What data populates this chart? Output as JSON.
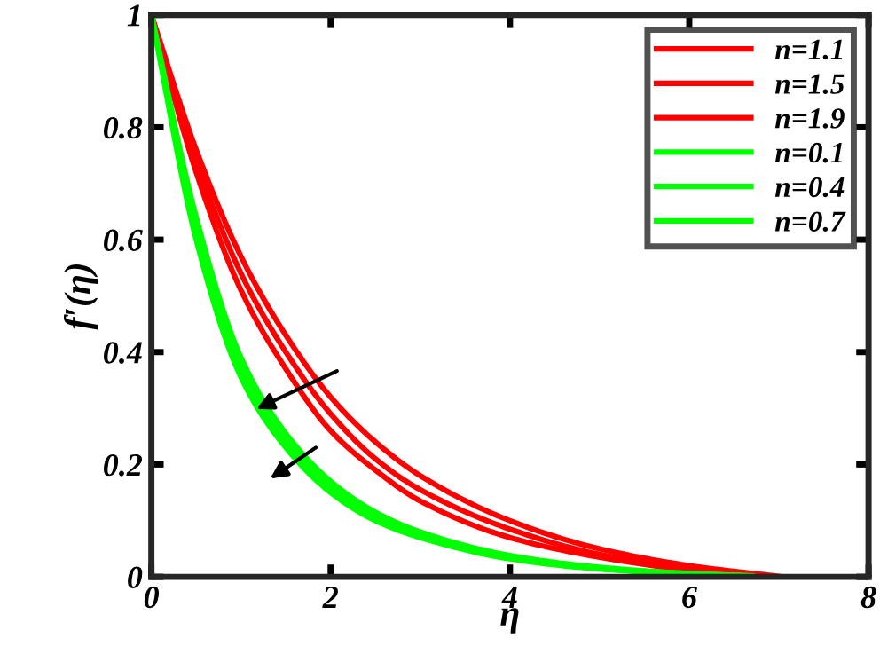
{
  "chart_data": {
    "type": "line",
    "xlabel": "η",
    "ylabel": "f′(η)",
    "xlim": [
      0,
      8
    ],
    "ylim": [
      0,
      1
    ],
    "xticks": [
      0,
      2,
      4,
      6,
      8
    ],
    "yticks": [
      0,
      0.2,
      0.4,
      0.6,
      0.8,
      1
    ],
    "legend": "top right",
    "grid": false,
    "x": [
      0,
      0.5,
      1,
      1.5,
      2,
      2.5,
      3,
      4,
      5,
      6,
      7
    ],
    "series": [
      {
        "name": "n=1.1",
        "color": "#ff0000",
        "x": [
          0,
          0.5,
          1,
          1.5,
          2,
          2.5,
          3,
          4,
          5,
          6,
          7.05
        ],
        "values": [
          1,
          0.76,
          0.57,
          0.43,
          0.32,
          0.24,
          0.18,
          0.1,
          0.05,
          0.02,
          0
        ]
      },
      {
        "name": "n=1.5",
        "color": "#ff0000",
        "values": [
          1,
          0.74,
          0.54,
          0.4,
          0.29,
          0.21,
          0.155,
          0.085,
          0.04,
          0.015,
          0
        ]
      },
      {
        "name": "n=1.9",
        "color": "#ff0000",
        "x": [
          0,
          0.5,
          1,
          1.5,
          2,
          2.5,
          3,
          4,
          5,
          6,
          6.9
        ],
        "values": [
          1,
          0.72,
          0.51,
          0.37,
          0.26,
          0.19,
          0.135,
          0.07,
          0.035,
          0.012,
          0
        ]
      },
      {
        "name": "n=0.1",
        "color": "#00ff00",
        "x": [
          0,
          0.5,
          1,
          1.5,
          2,
          2.5,
          3,
          4,
          5,
          6,
          6.7
        ],
        "values": [
          1,
          0.64,
          0.39,
          0.255,
          0.17,
          0.115,
          0.08,
          0.038,
          0.017,
          0.006,
          0.002
        ]
      },
      {
        "name": "n=0.4",
        "color": "#00ff00",
        "x": [
          0,
          0.5,
          1,
          1.5,
          2,
          2.5,
          3,
          4,
          5,
          6,
          6.6
        ],
        "values": [
          1,
          0.62,
          0.37,
          0.24,
          0.16,
          0.11,
          0.075,
          0.035,
          0.015,
          0.006,
          0.002
        ]
      },
      {
        "name": "n=0.7",
        "color": "#00ff00",
        "x": [
          0,
          0.5,
          1,
          1.5,
          2,
          2.5,
          3,
          4,
          5,
          6,
          6.5
        ],
        "values": [
          1,
          0.6,
          0.355,
          0.23,
          0.15,
          0.1,
          0.07,
          0.032,
          0.014,
          0.005,
          0.002
        ]
      }
    ]
  }
}
